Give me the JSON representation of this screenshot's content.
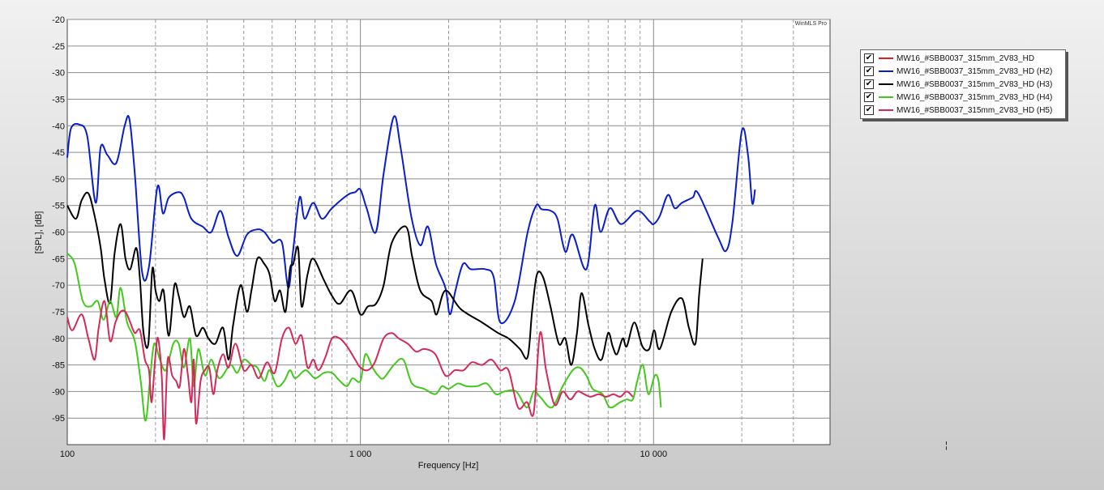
{
  "watermark": "WinMLS Pro",
  "marker": "¦",
  "legend": {
    "check_glyph": "✔",
    "entries": [
      {
        "label": "MW16_#SBB0037_315mm_2V83_HD",
        "color": "#e02020"
      },
      {
        "label": "MW16_#SBB0037_315mm_2V83_HD (H2)",
        "color": "#0a1ec8"
      },
      {
        "label": "MW16_#SBB0037_315mm_2V83_HD (H3)",
        "color": "#000000"
      },
      {
        "label": "MW16_#SBB0037_315mm_2V83_HD (H4)",
        "color": "#44c81e"
      },
      {
        "label": "MW16_#SBB0037_315mm_2V83_HD (H5)",
        "color": "#d42a5a"
      }
    ]
  },
  "chart_data": {
    "type": "line",
    "xlabel": "Frequency [Hz]",
    "ylabel": "[SPL], [dB]",
    "xscale": "log",
    "xlim": [
      100,
      40000
    ],
    "ylim": [
      -100,
      -20
    ],
    "x_tick_labels": [
      {
        "value": 100,
        "label": "100"
      },
      {
        "value": 1000,
        "label": "1 000"
      },
      {
        "value": 10000,
        "label": "10 000"
      }
    ],
    "y_ticks": [
      -20,
      -25,
      -30,
      -35,
      -40,
      -45,
      -50,
      -55,
      -60,
      -65,
      -70,
      -75,
      -80,
      -85,
      -90,
      -95
    ],
    "grid": true,
    "legend_position": "right",
    "series": [
      {
        "name": "MW16_#SBB0037_315mm_2V83_HD (H2)",
        "color": "#0a1ec8",
        "x": [
          100,
          103,
          110,
          117,
          125,
          130,
          137,
          147,
          157,
          163,
          170,
          180,
          190,
          203,
          212,
          222,
          240,
          250,
          265,
          290,
          310,
          333,
          355,
          380,
          410,
          445,
          470,
          502,
          540,
          567,
          588,
          620,
          645,
          690,
          740,
          800,
          905,
          960,
          1000,
          1050,
          1130,
          1200,
          1300,
          1370,
          1490,
          1600,
          1700,
          1810,
          1950,
          2020,
          2110,
          2240,
          2380,
          2670,
          2850,
          3000,
          3360,
          3720,
          3980,
          4150,
          4460,
          4700,
          5000,
          5300,
          5900,
          6300,
          6600,
          7100,
          7750,
          8800,
          9700,
          10000,
          10500,
          11200,
          11800,
          12500,
          13600,
          14200,
          16600,
          17700,
          18600,
          20000,
          21000,
          21700,
          22200
        ],
        "y": [
          -46,
          -40.5,
          -39.8,
          -42,
          -54.5,
          -44,
          -45.5,
          -47,
          -40,
          -38.8,
          -49,
          -67.5,
          -66.5,
          -51.5,
          -56.5,
          -53.5,
          -52.5,
          -53.5,
          -57.5,
          -59,
          -60,
          -56,
          -61,
          -64.5,
          -60.5,
          -59.5,
          -60,
          -62,
          -62,
          -70.5,
          -64,
          -53.5,
          -57.5,
          -54.5,
          -57.5,
          -55.5,
          -53,
          -52.5,
          -52,
          -55.5,
          -60,
          -49,
          -38.3,
          -44,
          -57,
          -62.5,
          -59,
          -66,
          -70.5,
          -75.5,
          -71,
          -66,
          -67,
          -67,
          -68.5,
          -77,
          -73,
          -60,
          -55,
          -55.7,
          -56,
          -57.5,
          -63.7,
          -60.5,
          -67,
          -55,
          -60,
          -55.5,
          -58.5,
          -56,
          -58,
          -58.5,
          -57,
          -53,
          -55.5,
          -54.5,
          -53.5,
          -52.7,
          -61,
          -63.5,
          -58,
          -41,
          -45.5,
          -54.5,
          -52
        ]
      },
      {
        "name": "MW16_#SBB0037_315mm_2V83_HD (H3)",
        "color": "#000000",
        "x": [
          100,
          107,
          112,
          118,
          124,
          130,
          134,
          140,
          145,
          152,
          158,
          164,
          172,
          177,
          182,
          189,
          195,
          200,
          206,
          213,
          222,
          232,
          240,
          250,
          262,
          275,
          290,
          303,
          320,
          340,
          355,
          368,
          390,
          410,
          425,
          445,
          470,
          490,
          510,
          532,
          555,
          575,
          590,
          613,
          630,
          660,
          690,
          750,
          800,
          850,
          930,
          1000,
          1060,
          1130,
          1200,
          1280,
          1430,
          1500,
          1600,
          1750,
          1820,
          1950,
          2200,
          2600,
          2950,
          3200,
          3500,
          3720,
          3850,
          4000,
          4200,
          4450,
          4750,
          5000,
          5240,
          5480,
          5680,
          6000,
          6300,
          6650,
          7000,
          7250,
          7500,
          7850,
          8100,
          8600,
          9160,
          9670,
          10050,
          10500,
          11500,
          12500,
          13200,
          13900,
          14300,
          14700
        ],
        "y": [
          -55,
          -57.5,
          -54,
          -52.7,
          -57,
          -63,
          -69,
          -73.3,
          -64,
          -58.5,
          -65,
          -67,
          -63,
          -69,
          -79,
          -81,
          -67,
          -71,
          -73,
          -71,
          -79.5,
          -70,
          -72,
          -76,
          -74,
          -79.5,
          -78,
          -80,
          -81,
          -78,
          -84,
          -77.5,
          -70,
          -75,
          -71,
          -65,
          -66,
          -68,
          -73,
          -71,
          -75,
          -67,
          -66,
          -63,
          -74,
          -68,
          -65,
          -69,
          -72,
          -73.5,
          -71,
          -75.5,
          -74,
          -73.5,
          -70,
          -62,
          -59,
          -64.5,
          -71,
          -73,
          -75.5,
          -71,
          -74.5,
          -77,
          -79,
          -80,
          -82,
          -83.5,
          -75,
          -68,
          -68.5,
          -74,
          -81,
          -80,
          -85,
          -79,
          -71.5,
          -77.5,
          -82,
          -84,
          -79,
          -81.5,
          -83,
          -80,
          -81.5,
          -77,
          -81.5,
          -82,
          -78.5,
          -82,
          -75,
          -72.5,
          -78,
          -81,
          -72,
          -65
        ]
      },
      {
        "name": "MW16_#SBB0037_315mm_2V83_HD (H4)",
        "color": "#44c81e",
        "x": [
          100,
          106,
          113,
          120,
          127,
          133,
          140,
          147,
          152,
          160,
          170,
          178,
          185,
          192,
          198,
          207,
          217,
          230,
          240,
          250,
          262,
          270,
          280,
          295,
          310,
          330,
          360,
          380,
          400,
          425,
          445,
          470,
          490,
          520,
          550,
          575,
          600,
          650,
          700,
          750,
          800,
          850,
          900,
          940,
          1000,
          1040,
          1100,
          1150,
          1200,
          1300,
          1400,
          1500,
          1650,
          1800,
          1900,
          2000,
          2150,
          2300,
          2500,
          2700,
          2900,
          3100,
          3400,
          3700,
          3900,
          4100,
          4500,
          4900,
          5300,
          5600,
          5900,
          6200,
          6700,
          7100,
          7700,
          8100,
          8500,
          8800,
          9200,
          9600,
          10100,
          10400,
          10600
        ],
        "y": [
          -64,
          -66,
          -73,
          -74,
          -73,
          -76.5,
          -73,
          -76,
          -70.5,
          -77,
          -80.5,
          -88,
          -95.5,
          -87,
          -81,
          -84,
          -86,
          -81,
          -81,
          -85.5,
          -80,
          -89,
          -82,
          -87,
          -84,
          -87.5,
          -85,
          -86.5,
          -84,
          -85,
          -85.5,
          -88,
          -86,
          -89,
          -88,
          -86,
          -87.5,
          -86,
          -87.5,
          -86.5,
          -86.5,
          -88,
          -89,
          -87.5,
          -88,
          -83,
          -85.5,
          -87,
          -87.5,
          -85,
          -84,
          -88.5,
          -89.5,
          -90.5,
          -89,
          -89.5,
          -88.5,
          -89,
          -89,
          -88.5,
          -90.5,
          -90,
          -90,
          -93,
          -90,
          -91,
          -93,
          -89,
          -86,
          -85.5,
          -87,
          -89.5,
          -90.5,
          -93,
          -92,
          -91.5,
          -91.5,
          -88,
          -85,
          -90.5,
          -87,
          -88,
          -93
        ]
      },
      {
        "name": "MW16_#SBB0037_315mm_2V83_HD (H5)",
        "color": "#d42a5a",
        "x": [
          100,
          104,
          112,
          118,
          124,
          128,
          134,
          140,
          146,
          152,
          158,
          164,
          170,
          177,
          184,
          190,
          194,
          200,
          204,
          210,
          214,
          220,
          228,
          235,
          242,
          250,
          258,
          265,
          270,
          275,
          285,
          295,
          305,
          315,
          325,
          340,
          355,
          375,
          400,
          425,
          450,
          480,
          510,
          540,
          570,
          600,
          630,
          660,
          690,
          720,
          760,
          800,
          850,
          900,
          960,
          1000,
          1060,
          1120,
          1200,
          1280,
          1350,
          1450,
          1550,
          1650,
          1800,
          1950,
          2100,
          2250,
          2400,
          2600,
          2800,
          3000,
          3200,
          3450,
          3700,
          3900,
          4100,
          4300,
          4600,
          4900,
          5200,
          5500,
          5800,
          6100,
          6500,
          6900,
          7300,
          7700,
          8100,
          8500
        ],
        "y": [
          -76,
          -78.5,
          -75.5,
          -80,
          -84,
          -78,
          -73,
          -80.5,
          -77,
          -75,
          -75,
          -77,
          -79,
          -78.5,
          -84,
          -86,
          -92,
          -83,
          -80,
          -87,
          -99,
          -84,
          -87,
          -88,
          -89,
          -82,
          -87,
          -92,
          -84,
          -96,
          -88,
          -86,
          -85.5,
          -90.5,
          -86,
          -83,
          -85.5,
          -81,
          -86,
          -85,
          -87.5,
          -84.5,
          -86.5,
          -80,
          -78,
          -81,
          -79.5,
          -85.5,
          -84,
          -86,
          -83.5,
          -80,
          -80,
          -81.5,
          -84,
          -85.5,
          -86,
          -84.5,
          -80,
          -79,
          -80,
          -81,
          -82.5,
          -82,
          -83,
          -87,
          -86,
          -86,
          -84.5,
          -85,
          -84,
          -86,
          -86,
          -93,
          -92,
          -94,
          -79,
          -86,
          -92.5,
          -90,
          -91.5,
          -90,
          -90.5,
          -91,
          -90.5,
          -91,
          -90.5,
          -91,
          -90,
          -91
        ]
      }
    ]
  }
}
